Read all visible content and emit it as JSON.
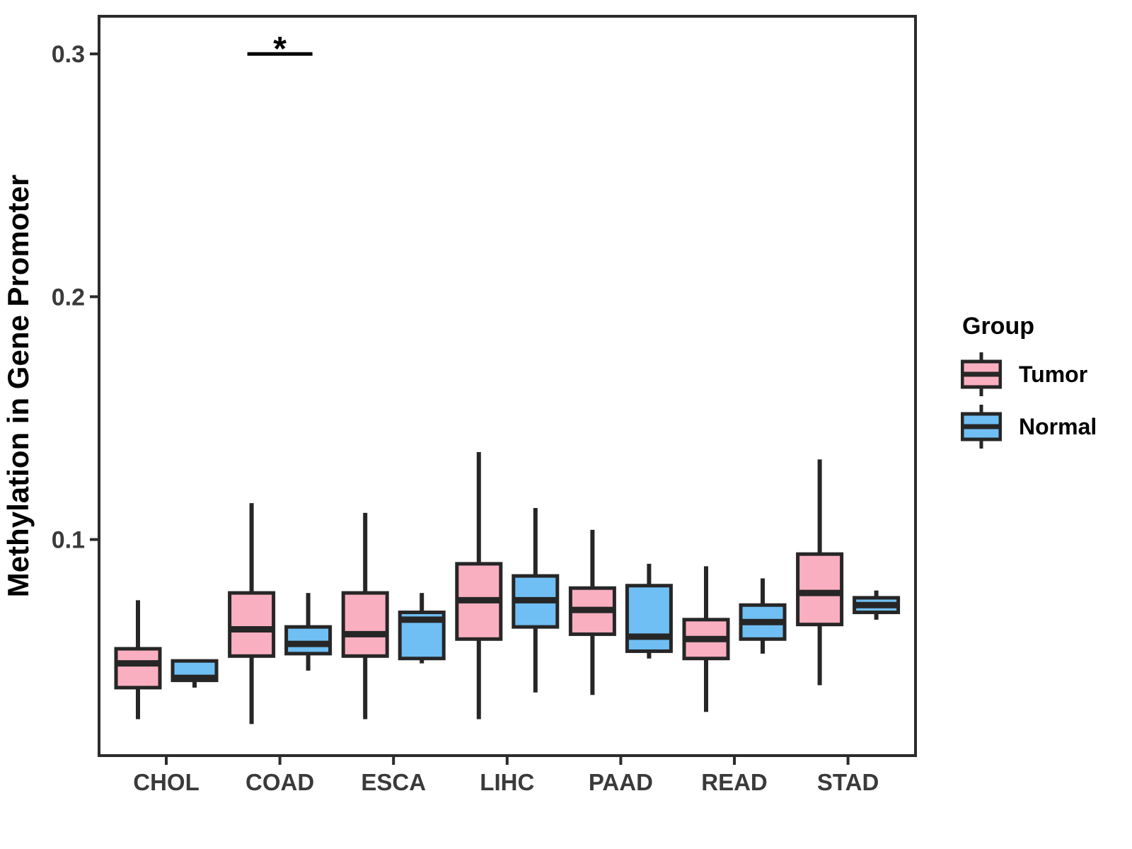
{
  "chart_data": {
    "type": "boxplot",
    "title": "",
    "ylabel": "Methylation in Gene Promoter",
    "xlabel": "",
    "legend_title": "Group",
    "legend_position": "right",
    "grid": false,
    "categories": [
      "CHOL",
      "COAD",
      "ESCA",
      "LIHC",
      "PAAD",
      "READ",
      "STAD"
    ],
    "ylim": [
      0.011,
      0.3155
    ],
    "yticks": [
      {
        "value": 0.1,
        "label": "0.1"
      },
      {
        "value": 0.2,
        "label": "0.2"
      },
      {
        "value": 0.3,
        "label": "0.3"
      }
    ],
    "groups": [
      {
        "name": "Tumor",
        "color": "#FAAFC0"
      },
      {
        "name": "Normal",
        "color": "#70BFF4"
      }
    ],
    "series": [
      {
        "name": "Tumor",
        "color": "#FAAFC0",
        "boxes": [
          {
            "category": "CHOL",
            "low": 0.026,
            "q1": 0.039,
            "median": 0.049,
            "q3": 0.055,
            "high": 0.075
          },
          {
            "category": "COAD",
            "low": 0.024,
            "q1": 0.052,
            "median": 0.063,
            "q3": 0.078,
            "high": 0.115
          },
          {
            "category": "ESCA",
            "low": 0.026,
            "q1": 0.052,
            "median": 0.061,
            "q3": 0.078,
            "high": 0.111
          },
          {
            "category": "LIHC",
            "low": 0.026,
            "q1": 0.059,
            "median": 0.075,
            "q3": 0.09,
            "high": 0.136
          },
          {
            "category": "PAAD",
            "low": 0.036,
            "q1": 0.061,
            "median": 0.071,
            "q3": 0.08,
            "high": 0.104
          },
          {
            "category": "READ",
            "low": 0.029,
            "q1": 0.051,
            "median": 0.059,
            "q3": 0.067,
            "high": 0.089
          },
          {
            "category": "STAD",
            "low": 0.04,
            "q1": 0.065,
            "median": 0.078,
            "q3": 0.094,
            "high": 0.133
          }
        ]
      },
      {
        "name": "Normal",
        "color": "#70BFF4",
        "boxes": [
          {
            "category": "CHOL",
            "low": 0.039,
            "q1": 0.042,
            "median": 0.043,
            "q3": 0.05,
            "high": 0.05
          },
          {
            "category": "COAD",
            "low": 0.046,
            "q1": 0.053,
            "median": 0.057,
            "q3": 0.064,
            "high": 0.078
          },
          {
            "category": "ESCA",
            "low": 0.049,
            "q1": 0.051,
            "median": 0.067,
            "q3": 0.07,
            "high": 0.078
          },
          {
            "category": "LIHC",
            "low": 0.037,
            "q1": 0.064,
            "median": 0.075,
            "q3": 0.085,
            "high": 0.113
          },
          {
            "category": "PAAD",
            "low": 0.051,
            "q1": 0.054,
            "median": 0.06,
            "q3": 0.081,
            "high": 0.09
          },
          {
            "category": "READ",
            "low": 0.053,
            "q1": 0.059,
            "median": 0.066,
            "q3": 0.073,
            "high": 0.084
          },
          {
            "category": "STAD",
            "low": 0.067,
            "q1": 0.07,
            "median": 0.073,
            "q3": 0.076,
            "high": 0.079
          }
        ]
      }
    ],
    "annotation": {
      "text": "*",
      "category": "COAD",
      "y_value": 0.3
    },
    "colors": {
      "box_stroke": "#262626",
      "panel_border": "#2b2b2b",
      "tick_text": "#3a3a3a",
      "axis_title_text": "#000000"
    }
  }
}
